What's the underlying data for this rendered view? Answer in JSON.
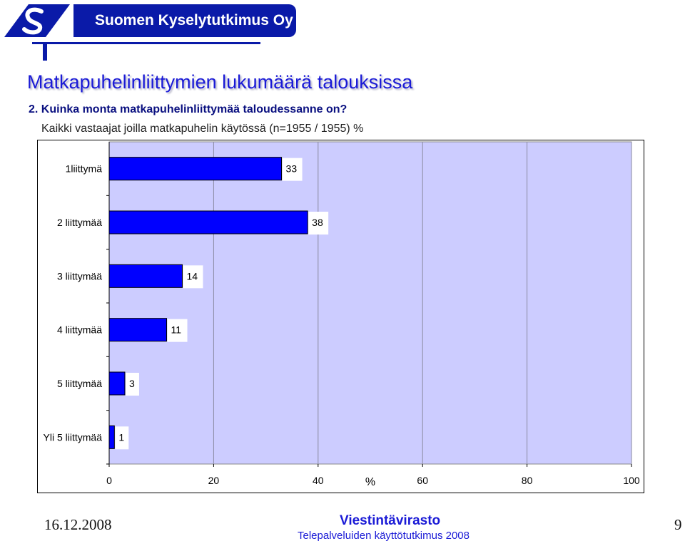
{
  "header": {
    "company": "Suomen Kyselytutkimus Oy",
    "brand_color": "#0a1aa8"
  },
  "page": {
    "title": "Matkapuhelinliittymien lukumäärä talouksissa",
    "question": "2. Kuinka monta matkapuhelinliittymää taloudessanne on?",
    "subtitle": "Kaikki vastaajat joilla matkapuhelin käytössä (n=1955 / 1955) %"
  },
  "chart_data": {
    "type": "bar",
    "orientation": "horizontal",
    "categories": [
      "1liittymä",
      "2 liittymää",
      "3 liittymää",
      "4 liittymää",
      "5 liittymää",
      "Yli 5 liittymää"
    ],
    "values": [
      33,
      38,
      14,
      11,
      3,
      1
    ],
    "xlabel": "%",
    "xlim": [
      0,
      100
    ],
    "xticks": [
      0,
      20,
      40,
      60,
      80,
      100
    ],
    "grid": true,
    "colors": {
      "bar": "#0000ff",
      "plot_bg": "#ccccff"
    }
  },
  "footer": {
    "date": "16.12.2008",
    "organization": "Viestintävirasto",
    "study": "Telepalveluiden käyttötutkimus 2008",
    "page_number": "9"
  }
}
